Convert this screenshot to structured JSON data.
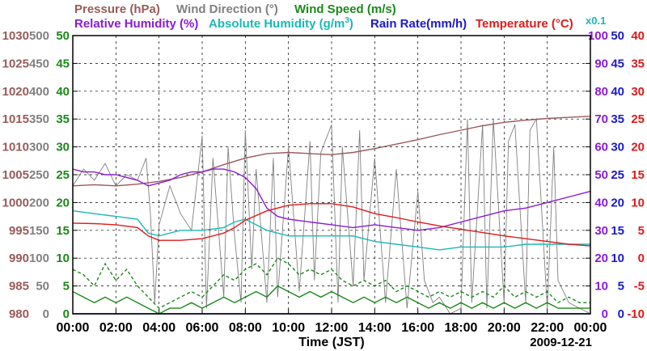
{
  "chart_data": {
    "type": "line",
    "titles": {
      "pressure": "Pressure (hPa)",
      "wind_direction": "Wind Direction (°)",
      "wind_speed": "Wind Speed (m/s)",
      "relative_humidity": "Relative Humidity (%)",
      "absolute_humidity_prefix": "Absolute Humidity (g/m",
      "absolute_humidity_sup": "3",
      "absolute_humidity_suffix": ")",
      "rain_rate": "Rain Rate(mm/h)",
      "temperature": "Temperature (°C)",
      "rain_multiplier": "x0.1"
    },
    "xlabel": "Time (JST)",
    "date": "2009-12-21",
    "x_ticks": [
      "00:00",
      "02:00",
      "04:00",
      "06:00",
      "08:00",
      "10:00",
      "12:00",
      "14:00",
      "16:00",
      "18:00",
      "20:00",
      "22:00",
      "00:00"
    ],
    "xlim": [
      0,
      24
    ],
    "axes": {
      "pressure": {
        "ticks": [
          "1030",
          "1025",
          "1020",
          "1015",
          "1010",
          "1005",
          "1000",
          "995",
          "990",
          "985",
          "980"
        ],
        "range": [
          980,
          1030
        ],
        "color": "#9a5a5a"
      },
      "wind_dir": {
        "ticks": [
          "500",
          "450",
          "400",
          "350",
          "300",
          "250",
          "200",
          "150",
          "100",
          "50",
          "0"
        ],
        "range": [
          0,
          500
        ],
        "color": "#808080"
      },
      "wind_speed": {
        "ticks": [
          "50",
          "45",
          "40",
          "35",
          "30",
          "25",
          "20",
          "15",
          "10",
          "5",
          "0"
        ],
        "range": [
          0,
          50
        ],
        "color": "#1a8a1a"
      },
      "humidity": {
        "ticks": [
          "100",
          "90",
          "80",
          "70",
          "60",
          "50",
          "40",
          "30",
          "20",
          "10",
          "0"
        ],
        "range": [
          0,
          100
        ],
        "color": "#8a1ad8"
      },
      "rain": {
        "ticks": [
          "50",
          "45",
          "40",
          "35",
          "30",
          "25",
          "20",
          "15",
          "10",
          "5",
          "0"
        ],
        "range": [
          0,
          50
        ],
        "color": "#1a1acc"
      },
      "temperature": {
        "ticks": [
          "40",
          "35",
          "30",
          "25",
          "20",
          "15",
          "10",
          "5",
          "0",
          "-5",
          "-10"
        ],
        "range": [
          -10,
          40
        ],
        "color": "#e01a1a"
      }
    },
    "series": [
      {
        "name": "Pressure",
        "units": "hPa",
        "color": "#9a5a5a",
        "x": [
          0,
          1,
          2,
          3,
          4,
          5,
          6,
          7,
          8,
          9,
          10,
          11,
          12,
          13,
          14,
          15,
          16,
          17,
          18,
          19,
          20,
          21,
          22,
          23,
          24
        ],
        "values": [
          1003.0,
          1003.2,
          1003.0,
          1003.3,
          1003.8,
          1004.5,
          1005.5,
          1006.8,
          1008.0,
          1008.8,
          1009.0,
          1008.8,
          1008.6,
          1009.0,
          1009.7,
          1010.5,
          1011.3,
          1012.2,
          1013.0,
          1013.8,
          1014.4,
          1014.8,
          1015.1,
          1015.3,
          1015.5
        ]
      },
      {
        "name": "Relative Humidity",
        "units": "%",
        "color": "#8a1ad8",
        "x": [
          0,
          0.5,
          1,
          1.5,
          2,
          2.5,
          3,
          3.5,
          4,
          4.5,
          5,
          5.5,
          6,
          6.5,
          7,
          7.5,
          8,
          8.5,
          9,
          9.5,
          10,
          11,
          12,
          13,
          14,
          15,
          16,
          17,
          18,
          19,
          20,
          21,
          22,
          23,
          24
        ],
        "values": [
          52,
          51,
          51,
          50,
          50,
          49,
          48,
          46,
          47,
          48,
          50,
          51,
          51,
          52,
          52,
          51,
          49,
          45,
          38,
          35,
          34,
          33,
          32,
          31,
          32,
          31,
          30,
          31,
          33,
          35,
          37,
          38,
          40,
          42,
          44
        ]
      },
      {
        "name": "Absolute Humidity",
        "units": "g/m3",
        "color": "#1ab8b8",
        "x": [
          0,
          1,
          2,
          3,
          3.5,
          4,
          5,
          6,
          7,
          7.5,
          8,
          8.5,
          9,
          10,
          11,
          12,
          13,
          14,
          15,
          16,
          17,
          18,
          19,
          20,
          21,
          22,
          23,
          24
        ],
        "values": [
          18.5,
          18.0,
          17.5,
          17.0,
          14.5,
          14.0,
          15.0,
          15.0,
          15.5,
          16.5,
          17.0,
          16.0,
          15.0,
          14.0,
          14.0,
          14.0,
          14.0,
          13.0,
          12.5,
          12.0,
          11.5,
          12.0,
          12.0,
          12.0,
          12.5,
          12.5,
          12.5,
          12.5
        ]
      },
      {
        "name": "Rain Rate",
        "units": "mm/h x0.1",
        "color": "#1a1acc",
        "x": [
          0,
          24
        ],
        "values": [
          0,
          0
        ]
      },
      {
        "name": "Temperature",
        "units": "°C",
        "color": "#e01a1a",
        "x": [
          0,
          1,
          2,
          3,
          3.5,
          4,
          5,
          6,
          7,
          7.5,
          8,
          9,
          10,
          11,
          12,
          13,
          14,
          15,
          16,
          17,
          18,
          19,
          20,
          21,
          22,
          23,
          24
        ],
        "values": [
          6.3,
          6.2,
          6.0,
          5.5,
          4.0,
          3.2,
          3.2,
          3.5,
          4.5,
          5.5,
          6.8,
          8.5,
          9.5,
          9.8,
          9.8,
          9.2,
          8.0,
          7.3,
          6.5,
          5.8,
          5.2,
          4.6,
          4.0,
          3.5,
          3.0,
          2.5,
          2.2
        ]
      },
      {
        "name": "Wind Direction",
        "units": "°",
        "color": "#808080",
        "x": [
          0,
          0.5,
          1,
          1.5,
          2,
          2.5,
          3,
          3.4,
          3.6,
          3.8,
          4,
          4.5,
          5,
          5.5,
          6,
          6.2,
          6.5,
          7,
          7.2,
          7.5,
          7.8,
          8,
          8.3,
          8.5,
          9,
          9.3,
          9.5,
          10,
          10.5,
          11,
          11.2,
          11.5,
          12,
          12.3,
          12.5,
          13,
          13.3,
          13.5,
          14,
          14.5,
          15,
          15.5,
          16,
          16.3,
          16.7,
          17,
          17.5,
          18,
          18.3,
          18.5,
          19,
          19.2,
          19.5,
          20,
          20.2,
          20.5,
          21,
          21.2,
          21.5,
          22,
          22.3,
          22.5,
          23,
          23.5,
          24
        ],
        "values": [
          230,
          260,
          240,
          270,
          230,
          250,
          240,
          280,
          180,
          20,
          160,
          230,
          180,
          150,
          320,
          10,
          280,
          30,
          300,
          140,
          20,
          330,
          80,
          260,
          20,
          280,
          30,
          300,
          40,
          310,
          60,
          290,
          340,
          20,
          300,
          50,
          330,
          60,
          280,
          20,
          260,
          10,
          220,
          60,
          20,
          30,
          0,
          10,
          350,
          20,
          340,
          10,
          350,
          20,
          310,
          340,
          20,
          330,
          350,
          10,
          300,
          60,
          20,
          10,
          0
        ]
      },
      {
        "name": "Wind Speed",
        "units": "m/s",
        "color": "#1a8a1a",
        "x": [
          0,
          0.5,
          1,
          1.5,
          2,
          2.5,
          3,
          3.5,
          4,
          4.5,
          5,
          5.5,
          6,
          6.5,
          7,
          7.5,
          8,
          8.5,
          9,
          9.5,
          10,
          10.5,
          11,
          11.5,
          12,
          12.5,
          13,
          13.5,
          14,
          14.5,
          15,
          15.5,
          16,
          16.5,
          17,
          17.5,
          18,
          18.5,
          19,
          19.5,
          20,
          20.5,
          21,
          21.5,
          22,
          22.5,
          23,
          23.5,
          24
        ],
        "values": [
          4,
          3,
          2,
          3,
          2,
          3,
          2,
          1,
          0,
          1,
          1,
          2,
          1,
          2,
          3,
          2,
          3,
          4,
          3,
          5,
          4,
          3,
          4,
          3,
          4,
          3,
          2,
          3,
          2,
          3,
          2,
          3,
          2,
          1,
          2,
          1,
          2,
          1,
          2,
          1,
          2,
          1,
          2,
          1,
          2,
          1,
          1,
          1,
          1
        ]
      },
      {
        "name": "Wind Speed (gust)",
        "units": "m/s",
        "color": "#1a8a1a",
        "dashed": true,
        "x": [
          0,
          0.5,
          1,
          1.5,
          2,
          2.5,
          3,
          3.5,
          4,
          4.5,
          5,
          5.5,
          6,
          6.5,
          7,
          7.5,
          8,
          8.5,
          9,
          9.5,
          10,
          10.5,
          11,
          11.5,
          12,
          12.5,
          13,
          13.5,
          14,
          14.5,
          15,
          15.5,
          16,
          16.5,
          17,
          17.5,
          18,
          18.5,
          19,
          19.5,
          20,
          20.5,
          21,
          21.5,
          22,
          22.5,
          23,
          23.5,
          24
        ],
        "values": [
          8,
          7,
          5,
          9,
          6,
          8,
          5,
          3,
          1,
          2,
          3,
          4,
          3,
          5,
          7,
          6,
          8,
          9,
          7,
          10,
          9,
          7,
          8,
          7,
          8,
          6,
          5,
          6,
          5,
          6,
          4,
          5,
          4,
          3,
          4,
          3,
          4,
          3,
          4,
          3,
          5,
          3,
          4,
          3,
          4,
          2,
          3,
          2,
          2
        ]
      }
    ]
  }
}
